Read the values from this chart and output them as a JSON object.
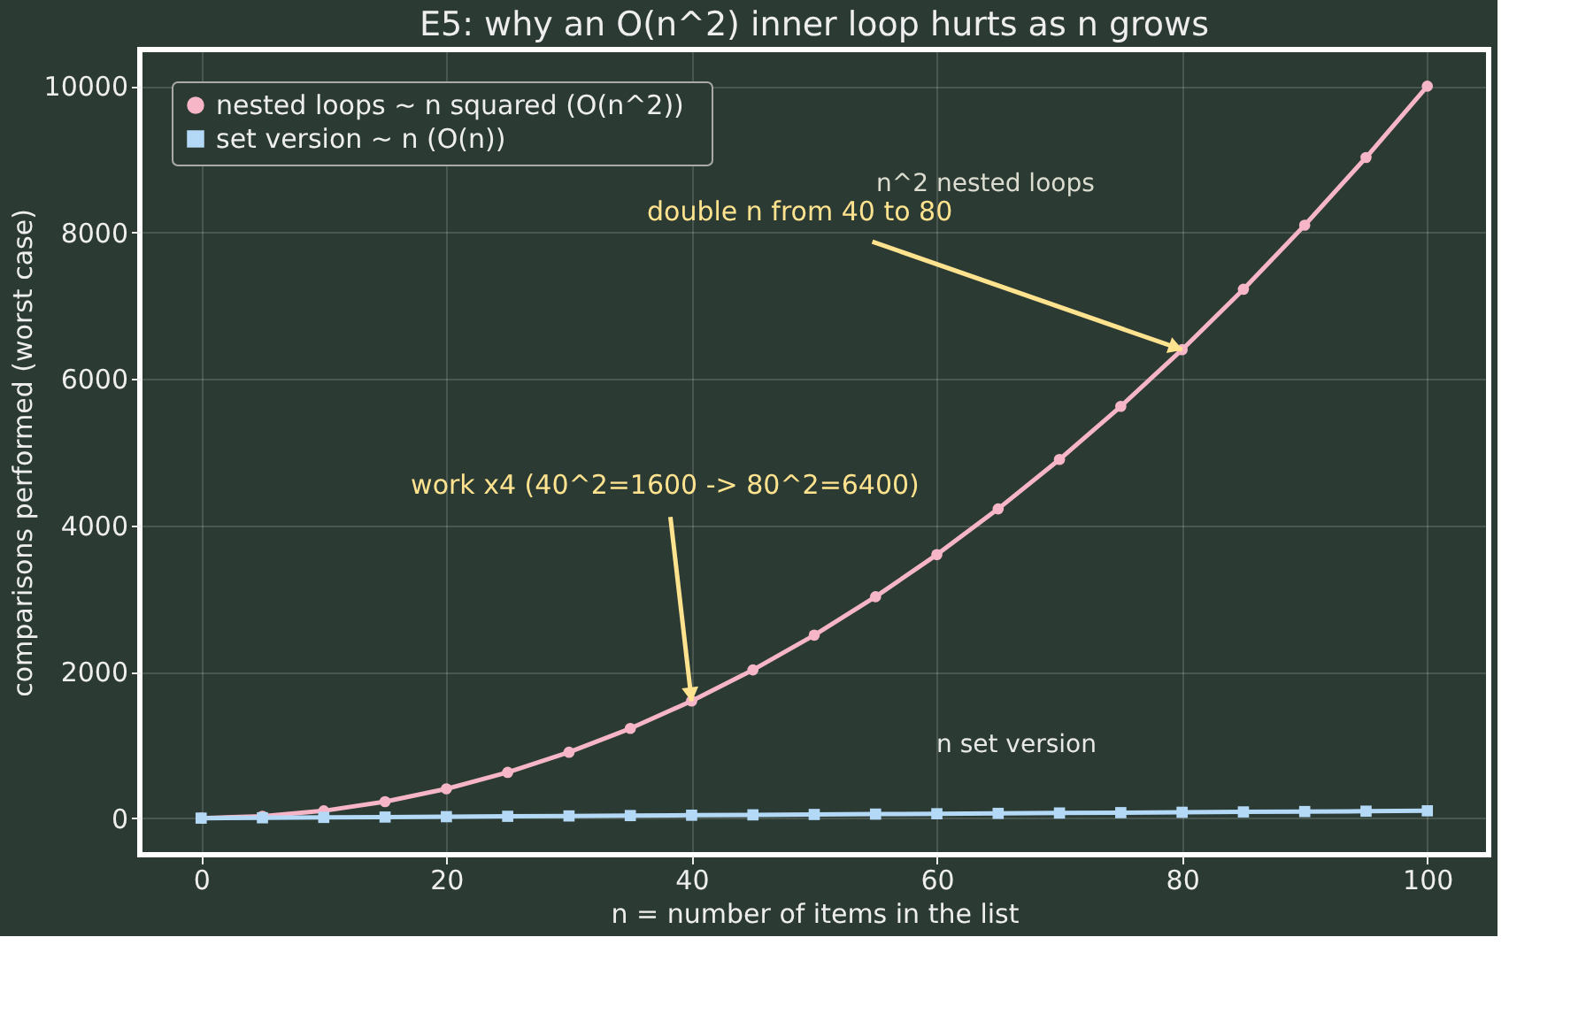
{
  "chart_data": {
    "type": "line",
    "title": "E5: why an O(n^2) inner loop hurts as n grows",
    "xlabel": "n  =  number of items in the list",
    "ylabel": "comparisons performed (worst case)",
    "x": [
      0,
      5,
      10,
      15,
      20,
      25,
      30,
      35,
      40,
      45,
      50,
      55,
      60,
      65,
      70,
      75,
      80,
      85,
      90,
      95,
      100
    ],
    "series": [
      {
        "name": "nested loops  ~ n squared  (O(n^2))",
        "color": "#f7b6c8",
        "marker": "circle",
        "values": [
          0,
          25,
          100,
          225,
          400,
          625,
          900,
          1225,
          1600,
          2025,
          2500,
          3025,
          3600,
          4225,
          4900,
          5625,
          6400,
          7225,
          8100,
          9025,
          10000
        ]
      },
      {
        "name": "set version  ~ n  (O(n))",
        "color": "#b3d9f7",
        "marker": "square",
        "values": [
          0,
          5,
          10,
          15,
          20,
          25,
          30,
          35,
          40,
          45,
          50,
          55,
          60,
          65,
          70,
          75,
          80,
          85,
          90,
          95,
          100
        ]
      }
    ],
    "xlim": [
      -5,
      105
    ],
    "ylim": [
      -500,
      10500
    ],
    "xticks": [
      0,
      20,
      40,
      60,
      80,
      100
    ],
    "yticks": [
      0,
      2000,
      4000,
      6000,
      8000,
      10000
    ],
    "grid": true,
    "legend": "top left",
    "line_style": "solid",
    "annotations": [
      "n^2 nested loops",
      {
        "text": "double n from 40 to 80",
        "x": 80,
        "y": 6400
      },
      {
        "text": "work x4 (40^2=1600 -> 80^2=6400)",
        "x": 40,
        "y": 1600
      },
      "n set version"
    ]
  }
}
